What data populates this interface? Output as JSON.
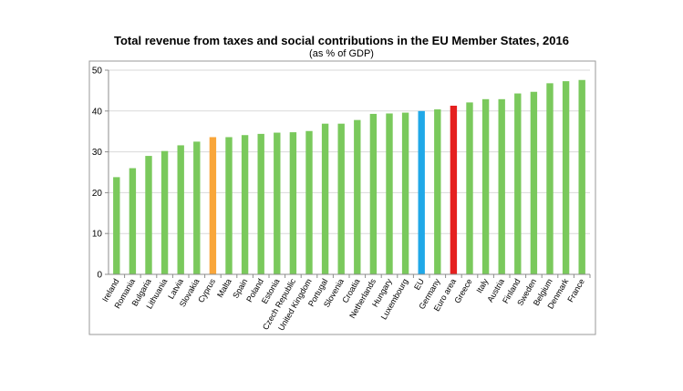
{
  "chart_data": {
    "type": "bar",
    "title": "Total revenue from taxes and social contributions in the EU Member States, 2016",
    "subtitle": "(as % of GDP)",
    "xlabel": "",
    "ylabel": "",
    "ylim": [
      0,
      50
    ],
    "yticks": [
      0,
      10,
      20,
      30,
      40,
      50
    ],
    "grid": true,
    "categories": [
      "Ireland",
      "Romania",
      "Bulgaria",
      "Lithuania",
      "Latvia",
      "Slovakia",
      "Cyprus",
      "Malta",
      "Spain",
      "Poland",
      "Estonia",
      "Czech Republic",
      "United Kingdom",
      "Portugal",
      "Slovenia",
      "Croatia",
      "Netherlands",
      "Hungary",
      "Luxembourg",
      "EU",
      "Germany",
      "Euro area",
      "Greece",
      "Italy",
      "Austria",
      "Finland",
      "Sweden",
      "Belgium",
      "Denmark",
      "France"
    ],
    "values": [
      23.8,
      26.0,
      29.0,
      30.2,
      31.6,
      32.5,
      33.6,
      33.6,
      34.1,
      34.4,
      34.7,
      34.8,
      35.1,
      36.9,
      36.9,
      37.8,
      39.3,
      39.4,
      39.6,
      40.0,
      40.4,
      41.3,
      42.1,
      42.9,
      42.9,
      44.3,
      44.7,
      46.8,
      47.3,
      47.6
    ],
    "colors": {
      "default": "#7ac95c",
      "Cyprus": "#f9a63a",
      "EU": "#20a8e8",
      "Euro area": "#e5201f"
    }
  }
}
